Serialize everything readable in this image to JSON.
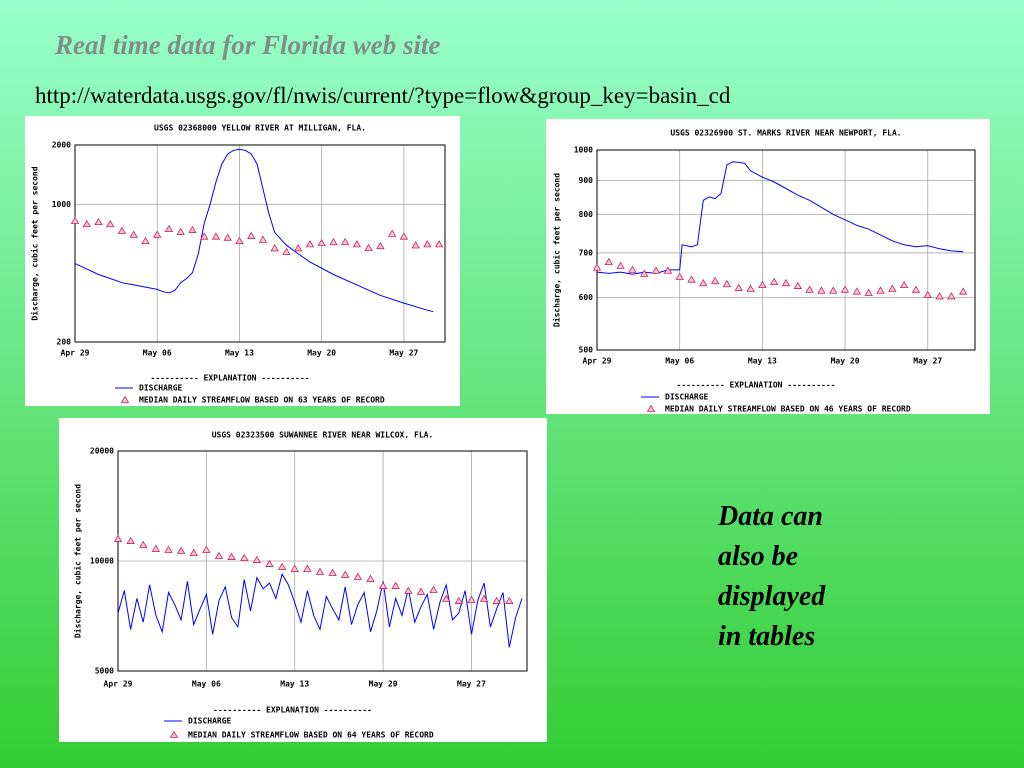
{
  "slide": {
    "title": "Real time data for Florida web site",
    "url": "http://waterdata.usgs.gov/fl/nwis/current/?type=flow&group_key=basin_cd",
    "note": [
      "Data can",
      "also be",
      "displayed",
      "in tables"
    ]
  },
  "chart_data": [
    {
      "type": "line",
      "title": "USGS 02368000 YELLOW RIVER AT MILLIGAN, FLA.",
      "y_label": "Discharge, cubic feet per second",
      "log_y": true,
      "grid": true,
      "ylim": [
        200,
        2000
      ],
      "yticks": [
        200,
        1000,
        2000
      ],
      "xlim": [
        0,
        31.5
      ],
      "xticks": [
        {
          "value": 0,
          "label": "Apr 29"
        },
        {
          "value": 7,
          "label": "May 06"
        },
        {
          "value": 14,
          "label": "May 13"
        },
        {
          "value": 21,
          "label": "May 20"
        },
        {
          "value": 28,
          "label": "May 27"
        }
      ],
      "legend_title": "----------  EXPLANATION  ----------",
      "series": [
        {
          "name": "DISCHARGE",
          "color": "#0000ff",
          "x": [
            0,
            1,
            2,
            3,
            4,
            5,
            6,
            7,
            7.5,
            8,
            8.5,
            9,
            9.5,
            10,
            10.5,
            11,
            11.5,
            12,
            12.5,
            13,
            13.5,
            14,
            14.5,
            15,
            15.5,
            16,
            16.5,
            17,
            18,
            19,
            20,
            22,
            24,
            26,
            28,
            30,
            30.5
          ],
          "values": [
            500,
            470,
            440,
            420,
            400,
            390,
            380,
            370,
            360,
            355,
            365,
            400,
            420,
            450,
            560,
            800,
            1000,
            1300,
            1600,
            1800,
            1880,
            1900,
            1880,
            1800,
            1600,
            1200,
            900,
            720,
            620,
            560,
            510,
            440,
            390,
            345,
            315,
            290,
            285
          ]
        },
        {
          "name": "MEDIAN DAILY STREAMFLOW BASED ON 63 YEARS OF RECORD",
          "color": "#cc2255",
          "marker": "triangle",
          "x": [
            0,
            1,
            2,
            3,
            4,
            5,
            6,
            7,
            8,
            9,
            10,
            11,
            12,
            13,
            14,
            15,
            16,
            17,
            18,
            19,
            20,
            21,
            22,
            23,
            24,
            25,
            26,
            27,
            28,
            29,
            30,
            31
          ],
          "values": [
            823,
            792,
            812,
            792,
            732,
            700,
            650,
            700,
            748,
            724,
            740,
            685,
            685,
            676,
            650,
            690,
            660,
            597,
            572,
            597,
            626,
            635,
            642,
            642,
            626,
            600,
            613,
            708,
            685,
            618,
            626,
            626
          ]
        }
      ]
    },
    {
      "type": "line",
      "title": "USGS 02326900 ST. MARKS RIVER NEAR NEWPORT, FLA.",
      "y_label": "Discharge, cubic feet per second",
      "log_y": true,
      "grid": true,
      "ylim": [
        500,
        1000
      ],
      "yticks": [
        500,
        600,
        700,
        800,
        900,
        1000
      ],
      "xlim": [
        0,
        32
      ],
      "xticks": [
        {
          "value": 0,
          "label": "Apr 29"
        },
        {
          "value": 7,
          "label": "May 06"
        },
        {
          "value": 14,
          "label": "May 13"
        },
        {
          "value": 21,
          "label": "May 20"
        },
        {
          "value": 28,
          "label": "May 27"
        }
      ],
      "legend_title": "----------  EXPLANATION  ----------",
      "series": [
        {
          "name": "DISCHARGE",
          "color": "#0000ff",
          "x": [
            0,
            1,
            2,
            3,
            4,
            5,
            6,
            7,
            7.2,
            8,
            8.5,
            9,
            9.5,
            10,
            10.5,
            11,
            11.5,
            12,
            12.5,
            13,
            14,
            15,
            16,
            17,
            18,
            19,
            20,
            21,
            22,
            23,
            24,
            25,
            26,
            27,
            28,
            29,
            30,
            31
          ],
          "values": [
            655,
            652,
            655,
            650,
            655,
            652,
            660,
            660,
            720,
            715,
            720,
            840,
            850,
            845,
            860,
            950,
            960,
            958,
            955,
            930,
            910,
            895,
            875,
            855,
            840,
            820,
            800,
            785,
            770,
            760,
            745,
            730,
            720,
            715,
            718,
            710,
            705,
            703
          ]
        },
        {
          "name": "MEDIAN DAILY STREAMFLOW BASED ON 46 YEARS OF RECORD",
          "color": "#cc2255",
          "marker": "triangle",
          "x": [
            0,
            1,
            2,
            3,
            4,
            5,
            6,
            7,
            8,
            9,
            10,
            11,
            12,
            13,
            14,
            15,
            16,
            17,
            18,
            19,
            20,
            21,
            22,
            23,
            24,
            25,
            26,
            27,
            28,
            29,
            30,
            31
          ],
          "values": [
            665,
            678,
            669,
            660,
            651,
            658,
            658,
            644,
            638,
            630,
            635,
            628,
            620,
            618,
            626,
            633,
            630,
            624,
            616,
            614,
            614,
            616,
            612,
            609,
            614,
            618,
            626,
            616,
            605,
            602,
            602,
            612
          ]
        }
      ]
    },
    {
      "type": "line",
      "title": "USGS 02323500  SUWANNEE RIVER NEAR WILCOX, FLA.",
      "y_label": "Discharge, cubic feet per second",
      "log_y": true,
      "grid": true,
      "ylim": [
        5000,
        20000
      ],
      "yticks": [
        5000,
        10000,
        20000
      ],
      "xlim": [
        0,
        32.4
      ],
      "xticks": [
        {
          "value": 0,
          "label": "Apr 29"
        },
        {
          "value": 7,
          "label": "May 06"
        },
        {
          "value": 14,
          "label": "May 13"
        },
        {
          "value": 21,
          "label": "May 20"
        },
        {
          "value": 28,
          "label": "May 27"
        }
      ],
      "legend_title": "----------  EXPLANATION  ----------",
      "series": [
        {
          "name": "DISCHARGE",
          "color": "#0000ff",
          "x": [
            0,
            0.5,
            1,
            1.5,
            2,
            2.5,
            3,
            3.5,
            4,
            4.5,
            5,
            5.5,
            6,
            6.5,
            7,
            7.5,
            8,
            8.5,
            9,
            9.5,
            10,
            10.5,
            11,
            11.5,
            12,
            12.5,
            13,
            13.5,
            14,
            14.5,
            15,
            15.5,
            16,
            16.5,
            17,
            17.5,
            18,
            18.5,
            19,
            19.5,
            20,
            20.5,
            21,
            21.5,
            22,
            22.5,
            23,
            23.5,
            24,
            24.5,
            25,
            25.5,
            26,
            26.5,
            27,
            27.5,
            28,
            28.5,
            29,
            29.5,
            30,
            30.5,
            31,
            31.5,
            32
          ],
          "values": [
            7200,
            8300,
            6500,
            7900,
            6800,
            8600,
            7100,
            6400,
            8200,
            7600,
            6900,
            8800,
            6700,
            7400,
            8100,
            6300,
            7800,
            8500,
            7000,
            6600,
            8900,
            7300,
            9000,
            8400,
            8700,
            7900,
            9200,
            8600,
            7700,
            6800,
            8300,
            7100,
            6500,
            8000,
            7400,
            6900,
            8500,
            6700,
            7600,
            8200,
            6400,
            7300,
            8800,
            6600,
            7900,
            7100,
            8400,
            6800,
            7500,
            8100,
            6500,
            7700,
            8600,
            6900,
            7200,
            8300,
            6300,
            7800,
            8700,
            6600,
            7400,
            8200,
            5800,
            7000,
            7900
          ]
        },
        {
          "name": "MEDIAN DAILY STREAMFLOW BASED ON 64 YEARS OF RECORD",
          "color": "#cc2255",
          "marker": "triangle",
          "x": [
            0,
            1,
            2,
            3,
            4,
            5,
            6,
            7,
            8,
            9,
            10,
            11,
            12,
            13,
            14,
            15,
            16,
            17,
            18,
            19,
            20,
            21,
            22,
            23,
            24,
            25,
            26,
            27,
            28,
            29,
            30,
            31
          ],
          "values": [
            11490,
            11340,
            11060,
            10790,
            10720,
            10650,
            10510,
            10720,
            10320,
            10250,
            10190,
            10060,
            9810,
            9630,
            9510,
            9510,
            9330,
            9270,
            9160,
            9040,
            8930,
            8540,
            8540,
            8280,
            8230,
            8330,
            7870,
            7770,
            7820,
            7870,
            7770,
            7770
          ]
        }
      ]
    }
  ]
}
